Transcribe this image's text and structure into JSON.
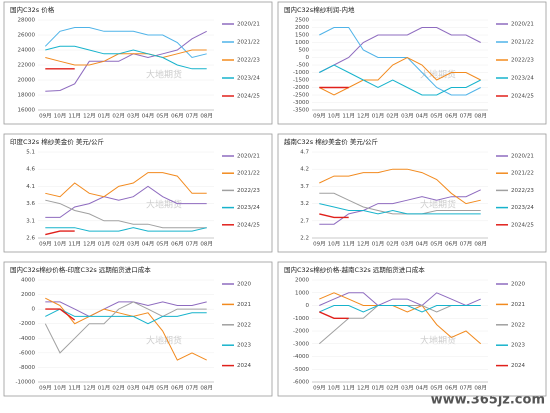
{
  "watermark": "www.365jz.com",
  "chart_data": [
    {
      "type": "line",
      "title": "国内C32s 价格",
      "watermark": "大地期货",
      "categories": [
        "09月",
        "10月",
        "11月",
        "12月",
        "01月",
        "02月",
        "03月",
        "04月",
        "05月",
        "06月",
        "07月",
        "08月"
      ],
      "ylim": [
        16000,
        28000
      ],
      "yticks": [
        16000,
        18000,
        20000,
        22000,
        24000,
        26000,
        28000
      ],
      "series": [
        {
          "name": "2020/21",
          "color": "#8e6bbf",
          "values": [
            18500,
            18600,
            19500,
            22500,
            22500,
            22500,
            23500,
            23000,
            23500,
            24000,
            25500,
            26500
          ]
        },
        {
          "name": "2021/22",
          "color": "#4fb3e8",
          "values": [
            24500,
            26500,
            27000,
            27000,
            26500,
            26500,
            26500,
            26000,
            26000,
            25000,
            23000,
            23500
          ]
        },
        {
          "name": "2022/23",
          "color": "#f28a1e",
          "values": [
            23000,
            22500,
            22000,
            22000,
            22500,
            23500,
            23500,
            23500,
            23000,
            23500,
            24000,
            24000
          ]
        },
        {
          "name": "2023/24",
          "color": "#17b3cc",
          "values": [
            24000,
            24500,
            24500,
            24000,
            23500,
            23500,
            24000,
            23500,
            23000,
            22000,
            21500,
            21500
          ]
        },
        {
          "name": "2024/25",
          "color": "#e0201b",
          "values": [
            21500,
            21500,
            21500,
            null,
            null,
            null,
            null,
            null,
            null,
            null,
            null,
            null
          ]
        }
      ]
    },
    {
      "type": "line",
      "title": "国内C32s棉纱利润-内地",
      "watermark": "大地期货",
      "categories": [
        "09月",
        "10月",
        "11月",
        "12月",
        "01月",
        "02月",
        "03月",
        "04月",
        "05月",
        "06月",
        "07月",
        "08月"
      ],
      "ylim": [
        -3500,
        2500
      ],
      "yticks": [
        -3500,
        -3000,
        -2500,
        -2000,
        -1500,
        -1000,
        -500,
        0,
        500,
        1000,
        1500,
        2000,
        2500
      ],
      "series": [
        {
          "name": "2020/21",
          "color": "#8e6bbf",
          "values": [
            -1000,
            -500,
            0,
            1000,
            1500,
            1500,
            1500,
            2000,
            2000,
            1500,
            1500,
            1000
          ]
        },
        {
          "name": "2021/22",
          "color": "#4fb3e8",
          "values": [
            1500,
            2000,
            2000,
            500,
            0,
            0,
            0,
            -1000,
            -2000,
            -2500,
            -2500,
            -2000
          ]
        },
        {
          "name": "2022/23",
          "color": "#f28a1e",
          "values": [
            -2000,
            -2500,
            -2000,
            -1500,
            -1500,
            -500,
            0,
            -500,
            -1500,
            -1000,
            -1000,
            -1500
          ]
        },
        {
          "name": "2023/24",
          "color": "#17b3cc",
          "values": [
            -1000,
            -500,
            -1000,
            -1500,
            -2000,
            -1500,
            -2000,
            -2500,
            -2500,
            -2000,
            -2000,
            -1500
          ]
        },
        {
          "name": "2024/25",
          "color": "#e0201b",
          "values": [
            -2000,
            -2000,
            -2000,
            null,
            null,
            null,
            null,
            null,
            null,
            null,
            null,
            null
          ]
        }
      ]
    },
    {
      "type": "line",
      "title": "印度C32s 棉纱美金价 美元/公斤",
      "watermark": "大地期货",
      "categories": [
        "09月",
        "10月",
        "11月",
        "12月",
        "01月",
        "02月",
        "03月",
        "04月",
        "05月",
        "06月",
        "07月",
        "08月"
      ],
      "ylim": [
        2.6,
        5.1
      ],
      "yticks": [
        2.6,
        3.1,
        3.6,
        4.1,
        4.6,
        5.1
      ],
      "series": [
        {
          "name": "2020/21",
          "color": "#8e6bbf",
          "values": [
            3.2,
            3.2,
            3.5,
            3.6,
            3.8,
            3.7,
            3.8,
            4.1,
            3.8,
            3.6,
            3.6,
            3.6
          ]
        },
        {
          "name": "2021/22",
          "color": "#f28a1e",
          "values": [
            3.9,
            3.8,
            4.2,
            3.9,
            3.8,
            4.1,
            4.2,
            4.5,
            4.5,
            4.4,
            3.9,
            3.9
          ]
        },
        {
          "name": "2022/23",
          "color": "#a0a0a0",
          "values": [
            3.7,
            3.6,
            3.4,
            3.3,
            3.1,
            3.1,
            3.0,
            3.0,
            2.9,
            2.9,
            2.9,
            2.9
          ]
        },
        {
          "name": "2023/24",
          "color": "#17b3cc",
          "values": [
            2.9,
            2.9,
            2.9,
            2.8,
            2.8,
            2.8,
            2.9,
            2.8,
            2.8,
            2.8,
            2.8,
            2.9
          ]
        },
        {
          "name": "2024/25",
          "color": "#e0201b",
          "values": [
            2.7,
            2.8,
            2.8,
            null,
            null,
            null,
            null,
            null,
            null,
            null,
            null,
            null
          ]
        }
      ]
    },
    {
      "type": "line",
      "title": "越南C32s 棉纱美金价 美元/公斤",
      "watermark": "大地期货",
      "categories": [
        "09月",
        "10月",
        "11月",
        "12月",
        "01月",
        "02月",
        "03月",
        "04月",
        "05月",
        "06月",
        "07月",
        "08月"
      ],
      "ylim": [
        2.2,
        4.7
      ],
      "yticks": [
        2.2,
        2.7,
        3.2,
        3.7,
        4.2,
        4.7
      ],
      "series": [
        {
          "name": "2020/21",
          "color": "#8e6bbf",
          "values": [
            2.6,
            2.6,
            2.9,
            3.0,
            3.2,
            3.2,
            3.3,
            3.4,
            3.3,
            3.4,
            3.4,
            3.6
          ]
        },
        {
          "name": "2021/22",
          "color": "#f28a1e",
          "values": [
            3.8,
            4.0,
            4.0,
            4.1,
            4.1,
            4.2,
            4.2,
            4.1,
            3.9,
            3.5,
            3.2,
            3.3
          ]
        },
        {
          "name": "2022/23",
          "color": "#a0a0a0",
          "values": [
            3.5,
            3.5,
            3.3,
            3.1,
            3.0,
            2.9,
            2.9,
            2.9,
            3.0,
            3.0,
            3.0,
            3.0
          ]
        },
        {
          "name": "2023/24",
          "color": "#17b3cc",
          "values": [
            3.2,
            3.1,
            3.0,
            3.0,
            2.9,
            3.0,
            2.9,
            2.9,
            2.9,
            2.9,
            2.9,
            2.9
          ]
        },
        {
          "name": "2024/25",
          "color": "#e0201b",
          "values": [
            2.9,
            2.8,
            2.8,
            null,
            null,
            null,
            null,
            null,
            null,
            null,
            null,
            null
          ]
        }
      ]
    },
    {
      "type": "line",
      "title": "国内C32s棉纱价格-印度C32s 远期船货进口成本",
      "watermark": "大地期货",
      "categories": [
        "09月",
        "10月",
        "11月",
        "12月",
        "01月",
        "02月",
        "03月",
        "04月",
        "05月",
        "06月",
        "07月",
        "08月"
      ],
      "ylim": [
        -10000,
        4000
      ],
      "yticks": [
        -10000,
        -8000,
        -6000,
        -4000,
        -2000,
        0,
        2000,
        4000
      ],
      "series": [
        {
          "name": "2020",
          "color": "#8e6bbf",
          "values": [
            1000,
            1000,
            0,
            -1000,
            0,
            1000,
            1000,
            500,
            1000,
            500,
            500,
            1000
          ]
        },
        {
          "name": "2021",
          "color": "#f28a1e",
          "values": [
            1500,
            500,
            -2000,
            -1000,
            0,
            -500,
            -1000,
            -500,
            -3000,
            -7000,
            -6000,
            -7000
          ]
        },
        {
          "name": "2022",
          "color": "#a0a0a0",
          "values": [
            -2000,
            -6000,
            -4000,
            -2000,
            -2000,
            0,
            1000,
            0,
            -1000,
            0,
            0,
            0
          ]
        },
        {
          "name": "2023",
          "color": "#17b3cc",
          "values": [
            -1000,
            0,
            -1000,
            -1000,
            -1000,
            -1000,
            -1000,
            -2000,
            -1000,
            -1000,
            -500,
            -500
          ]
        },
        {
          "name": "2024",
          "color": "#e0201b",
          "values": [
            0,
            0,
            -1500,
            null,
            null,
            null,
            null,
            null,
            null,
            null,
            null,
            null
          ]
        }
      ]
    },
    {
      "type": "line",
      "title": "国内C32s棉纱价格-越南C32s 远期船货进口成本",
      "watermark": "大地期货",
      "categories": [
        "09月",
        "10月",
        "11月",
        "12月",
        "01月",
        "02月",
        "03月",
        "04月",
        "05月",
        "06月",
        "07月",
        "08月"
      ],
      "ylim": [
        -6000,
        2000
      ],
      "yticks": [
        -6000,
        -5000,
        -4000,
        -3000,
        -2000,
        -1000,
        0,
        1000,
        2000
      ],
      "series": [
        {
          "name": "2020",
          "color": "#8e6bbf",
          "values": [
            0,
            500,
            1000,
            1000,
            0,
            500,
            500,
            0,
            1000,
            500,
            0,
            500
          ]
        },
        {
          "name": "2021",
          "color": "#f28a1e",
          "values": [
            500,
            1000,
            500,
            0,
            0,
            0,
            -500,
            0,
            -1500,
            -2500,
            -2000,
            -3000
          ]
        },
        {
          "name": "2022",
          "color": "#a0a0a0",
          "values": [
            -3000,
            -2000,
            -1000,
            -1000,
            0,
            0,
            0,
            0,
            -500,
            0,
            0,
            0
          ]
        },
        {
          "name": "2023",
          "color": "#17b3cc",
          "values": [
            -500,
            0,
            0,
            -500,
            0,
            0,
            0,
            -500,
            0,
            0,
            0,
            0
          ]
        },
        {
          "name": "2024",
          "color": "#e0201b",
          "values": [
            -500,
            -1000,
            -1000,
            null,
            null,
            null,
            null,
            null,
            null,
            null,
            null,
            null
          ]
        }
      ]
    }
  ]
}
